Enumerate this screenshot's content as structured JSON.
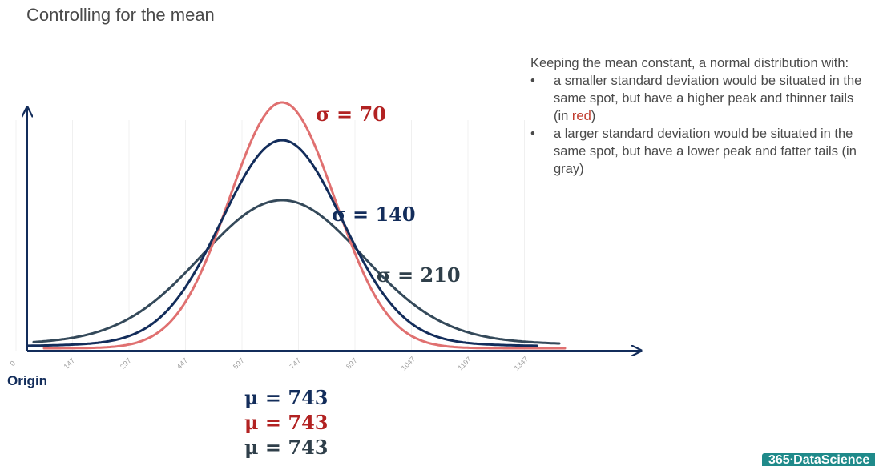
{
  "slide": {
    "title": "Controlling for the mean",
    "origin_label": "Origin",
    "notes": {
      "intro": "Keeping the mean constant, a normal distribution with:",
      "bullets": [
        {
          "text_before": "a smaller standard deviation would be situated in the same spot, but have a higher peak and thinner tails (in ",
          "highlight": "red",
          "text_after": ")"
        },
        {
          "text": "a larger standard deviation would be situated in the same spot, but have a lower peak and fatter tails (in gray)"
        }
      ]
    },
    "mean_labels": [
      "μ = 743",
      "μ = 743",
      "μ = 743"
    ],
    "logo_text": "365∙DataScience"
  },
  "chart_data": {
    "type": "line",
    "x_ticks": [
      "0",
      "147",
      "297",
      "447",
      "597",
      "747",
      "897",
      "1047",
      "1197",
      "1347"
    ],
    "mean": 743,
    "series": [
      {
        "name": "σ = 70",
        "mean": 743,
        "sd": 70,
        "color": "#e07070"
      },
      {
        "name": "σ = 140",
        "mean": 743,
        "sd": 140,
        "color": "#132d5b"
      },
      {
        "name": "σ = 210",
        "mean": 743,
        "sd": 210,
        "color": "#34495a"
      }
    ],
    "grid": false
  }
}
